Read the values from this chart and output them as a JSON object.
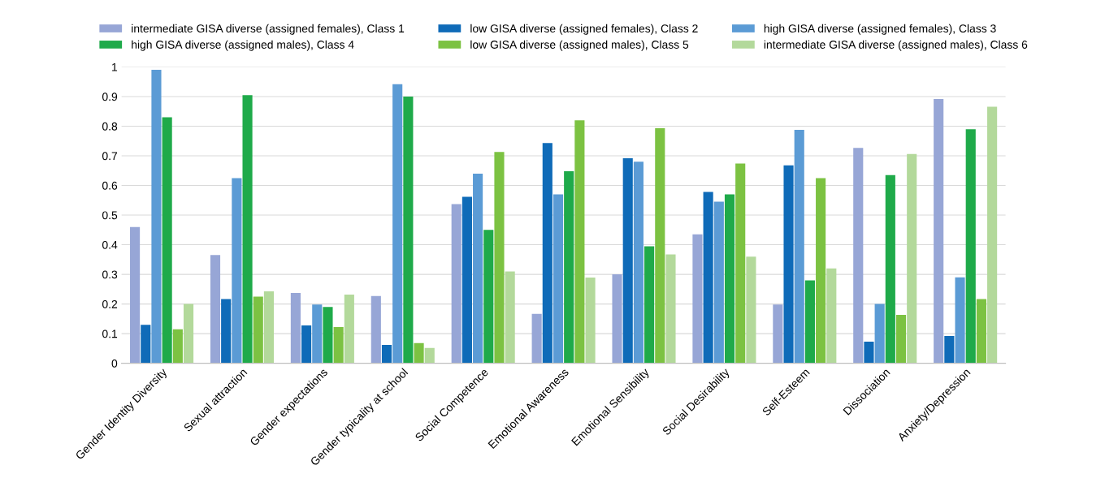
{
  "chart_data": {
    "type": "bar",
    "categories": [
      "Gender Identity Diversity",
      "Sexual attraction",
      "Gender expectations",
      "Gender typicality at school",
      "Social Competence",
      "Emotional Awareness",
      "Emotional Sensibility",
      "Social Desirability",
      "Self-Esteem",
      "Dissociation",
      "Anxiety/Depression"
    ],
    "series": [
      {
        "name": "intermediate GISA diverse (assigned females), Class 1",
        "color": "#97a6d6",
        "values": [
          0.46,
          0.365,
          0.237,
          0.227,
          0.537,
          0.167,
          0.3,
          0.435,
          0.198,
          0.727,
          0.892
        ]
      },
      {
        "name": "low GISA diverse (assigned females), Class 2",
        "color": "#0f6bb8",
        "values": [
          0.13,
          0.217,
          0.128,
          0.062,
          0.562,
          0.743,
          0.692,
          0.578,
          0.668,
          0.073,
          0.092
        ]
      },
      {
        "name": "high GISA diverse (assigned females), Class 3",
        "color": "#5b9bd5",
        "values": [
          0.99,
          0.625,
          0.198,
          0.942,
          0.64,
          0.57,
          0.68,
          0.545,
          0.788,
          0.2,
          0.29
        ]
      },
      {
        "name": "high GISA diverse (assigned males), Class 4",
        "color": "#1faa4a",
        "values": [
          0.83,
          0.905,
          0.19,
          0.9,
          0.45,
          0.648,
          0.395,
          0.57,
          0.28,
          0.635,
          0.79
        ]
      },
      {
        "name": "low GISA diverse (assigned males), Class 5",
        "color": "#7cc242",
        "values": [
          0.115,
          0.225,
          0.122,
          0.068,
          0.713,
          0.82,
          0.793,
          0.674,
          0.625,
          0.163,
          0.217
        ]
      },
      {
        "name": "intermediate GISA diverse (assigned males), Class 6",
        "color": "#b3d99b",
        "values": [
          0.2,
          0.243,
          0.232,
          0.052,
          0.31,
          0.289,
          0.367,
          0.36,
          0.32,
          0.706,
          0.866
        ]
      }
    ],
    "ylim": [
      0,
      1
    ],
    "yticks": [
      0,
      0.1,
      0.2,
      0.3,
      0.4,
      0.5,
      0.6,
      0.7,
      0.8,
      0.9,
      1
    ],
    "grid": "y",
    "legend": "top"
  }
}
